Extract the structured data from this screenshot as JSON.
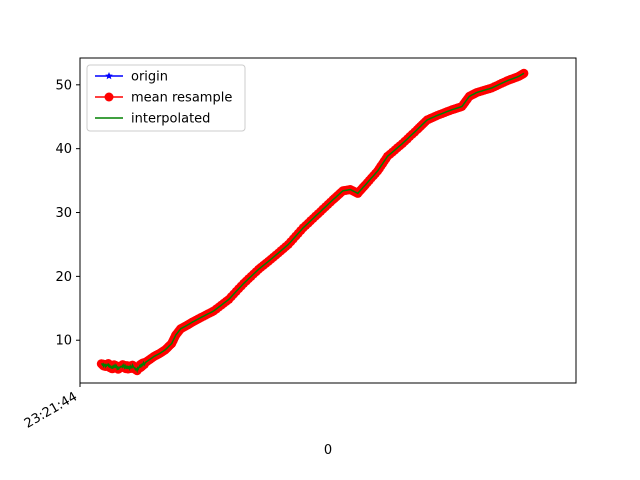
{
  "chart_data": {
    "type": "line",
    "xlabel": "0",
    "ylabel": "",
    "x_tick_labels": [
      "23:21:44"
    ],
    "y_ticks": [
      10,
      20,
      30,
      40,
      50
    ],
    "x_range": [
      0,
      1
    ],
    "ylim": [
      3.3,
      54.2
    ],
    "grid": false,
    "legend_placement": "top-left",
    "series": [
      {
        "name": "origin",
        "color": "#0000ff",
        "marker": "star"
      },
      {
        "name": "mean resample",
        "color": "#ff0000",
        "marker": "circle"
      },
      {
        "name": "interpolated",
        "color": "#008000",
        "marker": "none"
      }
    ],
    "points": [
      [
        0.043,
        6.3
      ],
      [
        0.05,
        6.0
      ],
      [
        0.057,
        6.1
      ],
      [
        0.064,
        5.7
      ],
      [
        0.071,
        6.0
      ],
      [
        0.078,
        5.6
      ],
      [
        0.085,
        6.0
      ],
      [
        0.092,
        5.8
      ],
      [
        0.1,
        5.7
      ],
      [
        0.107,
        5.9
      ],
      [
        0.114,
        5.3
      ],
      [
        0.121,
        5.9
      ],
      [
        0.128,
        6.3
      ],
      [
        0.139,
        6.9
      ],
      [
        0.15,
        7.5
      ],
      [
        0.16,
        7.9
      ],
      [
        0.172,
        8.5
      ],
      [
        0.185,
        9.5
      ],
      [
        0.193,
        10.8
      ],
      [
        0.203,
        11.8
      ],
      [
        0.215,
        12.3
      ],
      [
        0.228,
        12.9
      ],
      [
        0.245,
        13.6
      ],
      [
        0.27,
        14.6
      ],
      [
        0.3,
        16.4
      ],
      [
        0.33,
        18.9
      ],
      [
        0.36,
        21.1
      ],
      [
        0.39,
        23.0
      ],
      [
        0.42,
        25.0
      ],
      [
        0.45,
        27.6
      ],
      [
        0.48,
        29.8
      ],
      [
        0.51,
        32.0
      ],
      [
        0.53,
        33.4
      ],
      [
        0.545,
        33.6
      ],
      [
        0.56,
        33.0
      ],
      [
        0.575,
        34.3
      ],
      [
        0.6,
        36.5
      ],
      [
        0.62,
        38.8
      ],
      [
        0.65,
        40.8
      ],
      [
        0.68,
        43.0
      ],
      [
        0.7,
        44.5
      ],
      [
        0.72,
        45.2
      ],
      [
        0.75,
        46.1
      ],
      [
        0.77,
        46.6
      ],
      [
        0.785,
        48.2
      ],
      [
        0.8,
        48.8
      ],
      [
        0.83,
        49.5
      ],
      [
        0.86,
        50.6
      ],
      [
        0.884,
        51.3
      ],
      [
        0.895,
        51.8
      ]
    ]
  }
}
